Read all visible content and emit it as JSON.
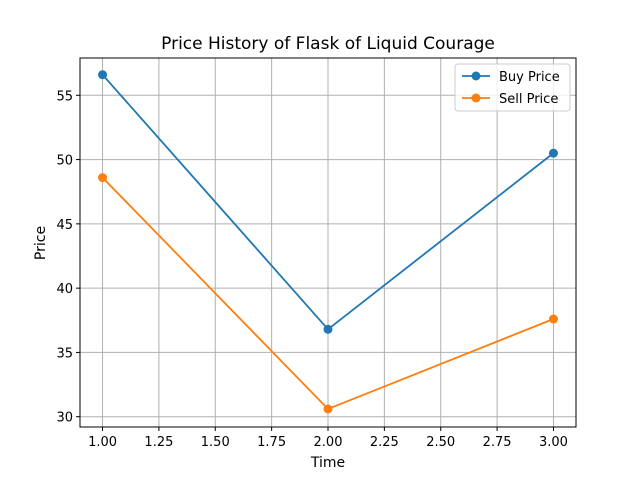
{
  "chart_data": {
    "type": "line",
    "title": "Price History of Flask of Liquid Courage",
    "xlabel": "Time",
    "ylabel": "Price",
    "x": [
      1.0,
      2.0,
      3.0
    ],
    "xlim": [
      0.9,
      3.1
    ],
    "ylim": [
      29.2,
      57.9
    ],
    "xticks": [
      1.0,
      1.25,
      1.5,
      1.75,
      2.0,
      2.25,
      2.5,
      2.75,
      3.0
    ],
    "xtick_labels": [
      "1.00",
      "1.25",
      "1.50",
      "1.75",
      "2.00",
      "2.25",
      "2.50",
      "2.75",
      "3.00"
    ],
    "yticks": [
      30,
      35,
      40,
      45,
      50,
      55
    ],
    "ytick_labels": [
      "30",
      "35",
      "40",
      "45",
      "50",
      "55"
    ],
    "grid": true,
    "legend_position": "top-right",
    "series": [
      {
        "name": "Buy Price",
        "color": "#1f77b4",
        "values": [
          56.6,
          36.8,
          50.5
        ]
      },
      {
        "name": "Sell Price",
        "color": "#ff7f0e",
        "values": [
          48.6,
          30.6,
          37.6
        ]
      }
    ]
  }
}
